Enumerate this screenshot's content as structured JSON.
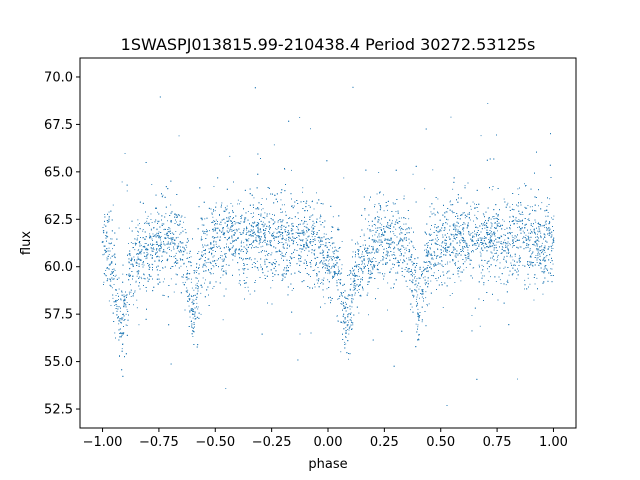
{
  "chart_data": {
    "type": "scatter",
    "title": "1SWASPJ013815.99-210438.4 Period 30272.53125s",
    "xlabel": "phase",
    "ylabel": "flux",
    "xlim": [
      -1.1,
      1.1
    ],
    "ylim": [
      51.5,
      71.0
    ],
    "x_ticks": [
      -1.0,
      -0.75,
      -0.5,
      -0.25,
      0.0,
      0.25,
      0.5,
      0.75,
      1.0
    ],
    "x_tick_labels": [
      "−1.00",
      "−0.75",
      "−0.50",
      "−0.25",
      "0.00",
      "0.25",
      "0.50",
      "0.75",
      "1.00"
    ],
    "y_ticks": [
      52.5,
      55.0,
      57.5,
      60.0,
      62.5,
      65.0,
      67.5,
      70.0
    ],
    "y_tick_labels": [
      "52.5",
      "55.0",
      "57.5",
      "60.0",
      "62.5",
      "65.0",
      "67.5",
      "70.0"
    ],
    "grid": false,
    "legend": "none",
    "point_color": "#1f77b4",
    "series": [
      {
        "x": [
          -1.0,
          -0.96,
          -0.92,
          -0.88,
          -0.84,
          -0.8,
          -0.76,
          -0.72,
          -0.68,
          -0.64,
          -0.6,
          -0.56,
          -0.52,
          -0.48,
          -0.44,
          -0.4,
          -0.36,
          -0.32,
          -0.28,
          -0.24,
          -0.2,
          -0.16,
          -0.12,
          -0.08,
          -0.04,
          0.0,
          0.04,
          0.08,
          0.12,
          0.16,
          0.2,
          0.24,
          0.28,
          0.32,
          0.36,
          0.4,
          0.44,
          0.48,
          0.52,
          0.56,
          0.6,
          0.64,
          0.68,
          0.72,
          0.76,
          0.8,
          0.84,
          0.88,
          0.92,
          0.96,
          1.0
        ],
        "y": [
          61.3,
          60.2,
          56.5,
          59.5,
          60.4,
          60.9,
          61.3,
          61.5,
          61.4,
          60.8,
          57.5,
          60.6,
          61.2,
          61.4,
          61.5,
          61.5,
          61.4,
          61.4,
          61.4,
          61.5,
          61.5,
          61.4,
          61.4,
          61.3,
          61.0,
          60.6,
          60.2,
          56.5,
          59.5,
          60.4,
          60.9,
          61.3,
          61.5,
          61.4,
          60.8,
          57.5,
          60.6,
          61.2,
          61.4,
          61.5,
          61.5,
          61.4,
          61.4,
          61.4,
          61.5,
          61.5,
          61.4,
          61.4,
          61.3,
          61.0,
          61.3
        ]
      }
    ]
  }
}
